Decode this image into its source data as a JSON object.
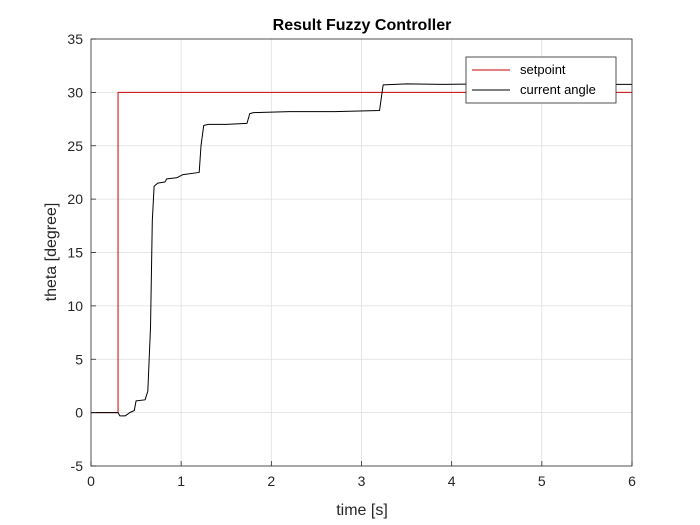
{
  "chart_data": {
    "type": "line",
    "title": "Result Fuzzy Controller",
    "xlabel": "time [s]",
    "ylabel": "theta [degree]",
    "xlim": [
      0,
      6
    ],
    "ylim": [
      -5,
      35
    ],
    "xticks": [
      0,
      1,
      2,
      3,
      4,
      5,
      6
    ],
    "yticks": [
      -5,
      0,
      5,
      10,
      15,
      20,
      25,
      30,
      35
    ],
    "grid": true,
    "legend_position": "top-right",
    "series": [
      {
        "name": "setpoint",
        "color": "#cc0000",
        "points": [
          [
            0,
            0
          ],
          [
            0.3,
            0
          ],
          [
            0.3,
            30
          ],
          [
            6,
            30
          ]
        ]
      },
      {
        "name": "current angle",
        "color": "#000000",
        "points": [
          [
            0,
            0
          ],
          [
            0.3,
            0
          ],
          [
            0.32,
            -0.3
          ],
          [
            0.38,
            -0.3
          ],
          [
            0.43,
            0
          ],
          [
            0.48,
            0.2
          ],
          [
            0.5,
            1.1
          ],
          [
            0.6,
            1.2
          ],
          [
            0.63,
            2
          ],
          [
            0.66,
            8
          ],
          [
            0.68,
            18
          ],
          [
            0.7,
            21.2
          ],
          [
            0.74,
            21.5
          ],
          [
            0.82,
            21.6
          ],
          [
            0.84,
            21.9
          ],
          [
            0.95,
            22.0
          ],
          [
            1.02,
            22.3
          ],
          [
            1.2,
            22.5
          ],
          [
            1.22,
            25
          ],
          [
            1.25,
            26.9
          ],
          [
            1.3,
            27.0
          ],
          [
            1.5,
            27.0
          ],
          [
            1.73,
            27.1
          ],
          [
            1.76,
            28.0
          ],
          [
            1.8,
            28.1
          ],
          [
            2.2,
            28.2
          ],
          [
            2.7,
            28.2
          ],
          [
            3.2,
            28.3
          ],
          [
            3.24,
            30.7
          ],
          [
            3.5,
            30.8
          ],
          [
            3.9,
            30.75
          ],
          [
            4.4,
            30.8
          ],
          [
            5.0,
            30.8
          ],
          [
            5.6,
            30.75
          ],
          [
            6.0,
            30.75
          ]
        ]
      }
    ]
  }
}
